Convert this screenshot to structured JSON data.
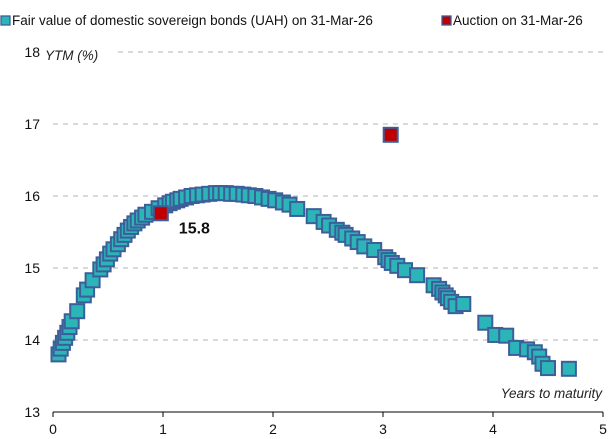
{
  "chart_data": {
    "type": "scatter",
    "xlabel": "Years to maturity",
    "ylabel": "YTM (%)",
    "xlim": [
      0,
      5
    ],
    "ylim": [
      13,
      18
    ],
    "xticks": [
      0,
      1,
      2,
      3,
      4,
      5
    ],
    "yticks": [
      13,
      14,
      15,
      16,
      17,
      18
    ],
    "grid": "horizontal dashed",
    "legend_position": "top",
    "series": [
      {
        "name": "Fair value of domestic sovereign bonds (UAH) on 31-Mar-26",
        "color": "#2bb5b8",
        "edge_color": "#3c5f9a",
        "marker": "square",
        "points": [
          [
            0.05,
            13.8
          ],
          [
            0.07,
            13.88
          ],
          [
            0.09,
            13.96
          ],
          [
            0.11,
            14.03
          ],
          [
            0.13,
            14.1
          ],
          [
            0.15,
            14.18
          ],
          [
            0.17,
            14.26
          ],
          [
            0.22,
            14.4
          ],
          [
            0.28,
            14.62
          ],
          [
            0.31,
            14.7
          ],
          [
            0.36,
            14.83
          ],
          [
            0.43,
            14.98
          ],
          [
            0.46,
            15.05
          ],
          [
            0.49,
            15.12
          ],
          [
            0.52,
            15.2
          ],
          [
            0.55,
            15.26
          ],
          [
            0.59,
            15.33
          ],
          [
            0.62,
            15.4
          ],
          [
            0.65,
            15.46
          ],
          [
            0.68,
            15.52
          ],
          [
            0.71,
            15.57
          ],
          [
            0.74,
            15.62
          ],
          [
            0.77,
            15.66
          ],
          [
            0.81,
            15.7
          ],
          [
            0.84,
            15.74
          ],
          [
            0.9,
            15.78
          ],
          [
            0.96,
            15.83
          ],
          [
            1.02,
            15.87
          ],
          [
            1.06,
            15.9
          ],
          [
            1.09,
            15.92
          ],
          [
            1.13,
            15.94
          ],
          [
            1.16,
            15.96
          ],
          [
            1.21,
            15.98
          ],
          [
            1.26,
            16.0
          ],
          [
            1.31,
            16.01
          ],
          [
            1.36,
            16.02
          ],
          [
            1.42,
            16.03
          ],
          [
            1.48,
            16.04
          ],
          [
            1.52,
            16.04
          ],
          [
            1.57,
            16.04
          ],
          [
            1.62,
            16.03
          ],
          [
            1.67,
            16.03
          ],
          [
            1.73,
            16.02
          ],
          [
            1.78,
            16.01
          ],
          [
            1.84,
            16.0
          ],
          [
            1.9,
            15.98
          ],
          [
            1.96,
            15.96
          ],
          [
            2.02,
            15.94
          ],
          [
            2.09,
            15.91
          ],
          [
            2.15,
            15.88
          ],
          [
            2.22,
            15.82
          ],
          [
            2.37,
            15.72
          ],
          [
            2.46,
            15.64
          ],
          [
            2.51,
            15.59
          ],
          [
            2.58,
            15.53
          ],
          [
            2.63,
            15.49
          ],
          [
            2.66,
            15.46
          ],
          [
            2.72,
            15.41
          ],
          [
            2.77,
            15.36
          ],
          [
            2.83,
            15.3
          ],
          [
            2.92,
            15.25
          ],
          [
            3.02,
            15.15
          ],
          [
            3.05,
            15.11
          ],
          [
            3.08,
            15.07
          ],
          [
            3.13,
            15.03
          ],
          [
            3.2,
            14.97
          ],
          [
            3.31,
            14.9
          ],
          [
            3.46,
            14.76
          ],
          [
            3.51,
            14.71
          ],
          [
            3.54,
            14.66
          ],
          [
            3.57,
            14.62
          ],
          [
            3.59,
            14.58
          ],
          [
            3.62,
            14.53
          ],
          [
            3.66,
            14.47
          ],
          [
            3.73,
            14.5
          ],
          [
            3.93,
            14.24
          ],
          [
            4.02,
            14.07
          ],
          [
            4.12,
            14.06
          ],
          [
            4.21,
            13.89
          ],
          [
            4.31,
            13.87
          ],
          [
            4.38,
            13.83
          ],
          [
            4.42,
            13.77
          ],
          [
            4.45,
            13.67
          ],
          [
            4.5,
            13.61
          ],
          [
            4.69,
            13.6
          ]
        ]
      },
      {
        "name": "Auction on 31-Mar-26",
        "color": "#c00000",
        "edge_color": "#3c5f9a",
        "marker": "square",
        "points": [
          [
            0.98,
            15.76
          ],
          [
            3.07,
            16.85
          ]
        ]
      }
    ],
    "annotations": [
      {
        "text": "15.8",
        "x": 0.98,
        "y": 15.76
      }
    ]
  }
}
